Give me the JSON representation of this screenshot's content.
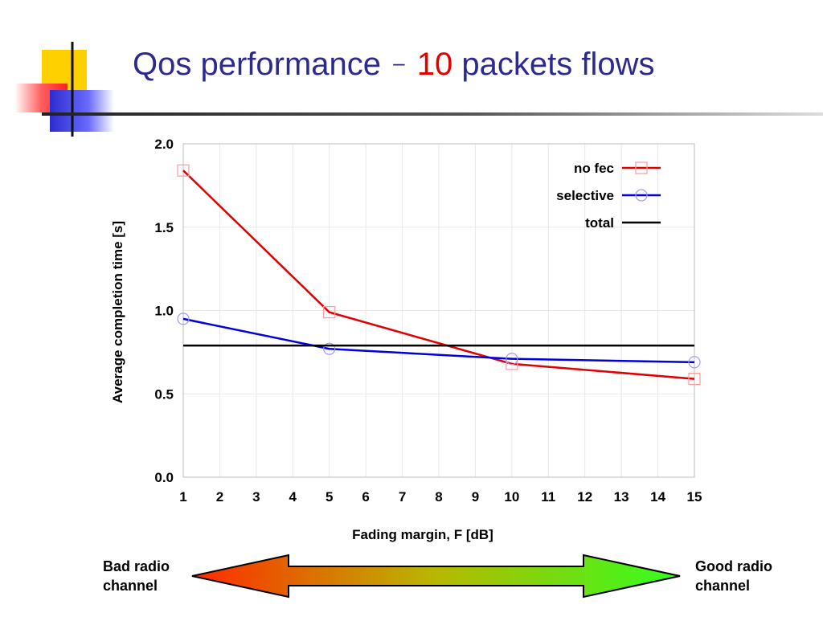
{
  "slide": {
    "title_main": "Qos performance",
    "title_dash": "–",
    "title_number": "10",
    "title_rest": "packets flows"
  },
  "radio": {
    "left_line1": "Bad radio",
    "left_line2": "channel",
    "right_line1": "Good radio",
    "right_line2": "channel"
  },
  "colors": {
    "title": "#2b2b8f",
    "title_number": "#e00000",
    "no_fec": "#e00000",
    "selective": "#0000dd",
    "total": "#000000",
    "arrow_left": "#ff2a00",
    "arrow_right": "#33ff1f"
  },
  "chart_data": {
    "type": "line",
    "title": "",
    "xlabel": "Fading margin, F [dB]",
    "ylabel": "Average completion time [s]",
    "xlim": [
      1,
      15
    ],
    "ylim": [
      0,
      2
    ],
    "xticks": [
      "1",
      "2",
      "3",
      "4",
      "5",
      "6",
      "7",
      "8",
      "9",
      "10",
      "11",
      "12",
      "13",
      "14",
      "15"
    ],
    "yticks": [
      "0.0",
      "0.5",
      "1.0",
      "1.5",
      "2.0"
    ],
    "grid": true,
    "legend": "top-right",
    "series": [
      {
        "name": "no fec",
        "color": "#e00000",
        "marker": "square",
        "points": [
          [
            1,
            1.84
          ],
          [
            5,
            0.99
          ],
          [
            10,
            0.68
          ],
          [
            15,
            0.59
          ]
        ]
      },
      {
        "name": "selective",
        "color": "#0000dd",
        "marker": "circle",
        "points": [
          [
            1,
            0.95
          ],
          [
            5,
            0.77
          ],
          [
            10,
            0.71
          ],
          [
            15,
            0.69
          ]
        ]
      },
      {
        "name": "total",
        "color": "#000000",
        "marker": "none",
        "points": [
          [
            1,
            0.79
          ],
          [
            15,
            0.79
          ]
        ]
      }
    ]
  }
}
